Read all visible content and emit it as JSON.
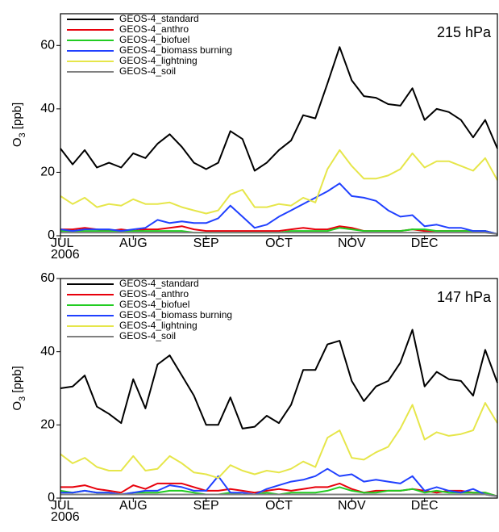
{
  "chart_data": [
    {
      "type": "line",
      "annotation": "215 hPa",
      "ylabel": [
        "O",
        "3",
        " [ppb]"
      ],
      "year_label": "2006",
      "categories": [
        "JUL",
        null,
        null,
        null,
        null,
        null,
        "AUG",
        null,
        null,
        null,
        null,
        null,
        "SEP",
        null,
        null,
        null,
        null,
        null,
        "OCT",
        null,
        null,
        null,
        null,
        null,
        "NOV",
        null,
        null,
        null,
        null,
        null,
        "DEC",
        null,
        null,
        null,
        null,
        null,
        null
      ],
      "ylim": [
        0,
        70
      ],
      "yticks": [
        0,
        20,
        40,
        60
      ],
      "legend": "upper left",
      "series": [
        {
          "name": "GEOS-4_standard",
          "color": "#000000",
          "values": [
            27.5,
            22.5,
            27,
            21.5,
            23,
            21.5,
            26,
            24.5,
            29,
            32,
            28,
            23,
            21,
            23,
            33,
            30.5,
            20.5,
            23,
            27,
            30,
            38,
            37,
            48,
            59.5,
            49,
            44,
            43.5,
            41.5,
            41,
            46.5,
            36.5,
            40,
            39,
            36.5,
            31,
            36.5,
            27.5
          ]
        },
        {
          "name": "GEOS-4_anthro",
          "color": "#e8000b",
          "values": [
            2,
            2,
            2.5,
            2,
            1.5,
            2,
            1.5,
            2,
            2,
            2.5,
            3,
            2,
            1.5,
            1.5,
            1.5,
            1.5,
            1.5,
            1.5,
            1.5,
            2,
            2.5,
            2,
            2,
            3,
            2.5,
            1.5,
            1.5,
            1.5,
            1.5,
            2,
            1.5,
            1.5,
            1.5,
            1.5,
            1.5,
            1.5,
            0.5
          ]
        },
        {
          "name": "GEOS-4_biofuel",
          "color": "#22cc22",
          "values": [
            1.5,
            1.5,
            1.5,
            1.5,
            1.5,
            1.5,
            1.5,
            1.5,
            1.5,
            1.5,
            1.5,
            1,
            1,
            1,
            1,
            1,
            1,
            1,
            1,
            1.5,
            1.5,
            1.5,
            1.5,
            2.5,
            2,
            1.5,
            1.5,
            1.5,
            1.5,
            2,
            2,
            1.5,
            1.5,
            1.5,
            1.5,
            1.5,
            0.5
          ]
        },
        {
          "name": "GEOS-4_biomass burning",
          "color": "#2040ff",
          "values": [
            2,
            1.5,
            2,
            2,
            2,
            1.5,
            2,
            2.5,
            5,
            4,
            4.5,
            4,
            4,
            5.5,
            9.5,
            6,
            2.5,
            3.5,
            6,
            8,
            10,
            12,
            14,
            16.5,
            12.5,
            12,
            11,
            8,
            6,
            6.5,
            3,
            3.5,
            2.5,
            2.5,
            1.5,
            1.5,
            0.5
          ]
        },
        {
          "name": "GEOS-4_lightning",
          "color": "#e6e64a",
          "values": [
            12.5,
            10,
            12,
            9,
            10,
            9.5,
            11.5,
            10,
            10,
            10.5,
            9,
            8,
            7,
            8,
            13,
            14.5,
            9,
            9,
            10,
            9.5,
            12,
            10.5,
            21,
            27,
            22,
            18,
            18,
            19,
            21,
            26,
            21.5,
            23.5,
            23.5,
            22,
            20.5,
            24.5,
            17.5
          ]
        },
        {
          "name": "GEOS-4_soil",
          "color": "#808080",
          "values": [
            1,
            1,
            1,
            1,
            1,
            1,
            1,
            1,
            1,
            1,
            1,
            1,
            1,
            1,
            1,
            1,
            1,
            1,
            1,
            1,
            1,
            1,
            1,
            1,
            1,
            1,
            1,
            1,
            1,
            1,
            1,
            1,
            1,
            1,
            1,
            1,
            0.5
          ]
        }
      ]
    },
    {
      "type": "line",
      "annotation": "147 hPa",
      "ylabel": [
        "O",
        "3",
        " [ppb]"
      ],
      "year_label": "2006",
      "categories": [
        "JUL",
        null,
        null,
        null,
        null,
        null,
        "AUG",
        null,
        null,
        null,
        null,
        null,
        "SEP",
        null,
        null,
        null,
        null,
        null,
        "OCT",
        null,
        null,
        null,
        null,
        null,
        "NOV",
        null,
        null,
        null,
        null,
        null,
        "DEC",
        null,
        null,
        null,
        null,
        null,
        null
      ],
      "ylim": [
        0,
        60
      ],
      "yticks": [
        0,
        20,
        40,
        60
      ],
      "legend": "upper left",
      "series": [
        {
          "name": "GEOS-4_standard",
          "color": "#000000",
          "values": [
            30,
            30.5,
            33.5,
            25,
            23,
            20.5,
            32.5,
            24.5,
            36.5,
            39,
            33.5,
            28,
            20,
            20,
            27.5,
            19,
            19.5,
            22.5,
            20.5,
            25.5,
            35,
            35,
            42,
            43,
            32,
            26.5,
            30.5,
            32,
            37,
            46,
            30.5,
            34.5,
            32.5,
            32,
            28,
            40.5,
            31.5
          ]
        },
        {
          "name": "GEOS-4_anthro",
          "color": "#e8000b",
          "values": [
            3,
            3,
            3.5,
            2.5,
            2,
            1.5,
            3.5,
            2.5,
            4,
            4,
            4,
            3,
            2,
            2,
            2.5,
            2,
            1.5,
            2,
            2.5,
            2,
            2.5,
            3,
            3,
            4,
            2.5,
            1.5,
            2,
            2,
            2,
            2.5,
            2,
            1.5,
            2,
            2,
            1.5,
            1.5,
            0.5
          ]
        },
        {
          "name": "GEOS-4_biofuel",
          "color": "#22cc22",
          "values": [
            2,
            1.5,
            2,
            1.5,
            1.5,
            1,
            1.5,
            1.5,
            1.5,
            2,
            2,
            1.5,
            1,
            1,
            1.5,
            1,
            1,
            1.5,
            1,
            1.5,
            1.5,
            1.5,
            2,
            3,
            2,
            1.5,
            1.5,
            2,
            2,
            2.5,
            1.5,
            2,
            1.5,
            1.5,
            1.5,
            1.5,
            0.5
          ]
        },
        {
          "name": "GEOS-4_biomass burning",
          "color": "#2040ff",
          "values": [
            1.5,
            1.5,
            2,
            1.5,
            1.5,
            1,
            1.5,
            2,
            2,
            3.5,
            3,
            2,
            2,
            6,
            1.5,
            1.5,
            1,
            2.5,
            3.5,
            4.5,
            5,
            6,
            8,
            6,
            6.5,
            4.5,
            5,
            4.5,
            4,
            6,
            2,
            3,
            2,
            1.5,
            2.5,
            1,
            0.5
          ]
        },
        {
          "name": "GEOS-4_lightning",
          "color": "#e6e64a",
          "values": [
            12,
            9.5,
            11,
            8.5,
            7.5,
            7.5,
            11.5,
            7.5,
            8,
            11.5,
            9.5,
            7,
            6.5,
            5.5,
            9,
            7.5,
            6.5,
            7.5,
            7,
            8,
            10,
            8.5,
            16.5,
            18.5,
            11,
            10.5,
            12.5,
            14,
            19,
            25.5,
            16,
            18,
            17,
            17.5,
            18.5,
            26,
            20.5
          ]
        },
        {
          "name": "GEOS-4_soil",
          "color": "#808080",
          "values": [
            1,
            1,
            1,
            1,
            1,
            1,
            1,
            1,
            1,
            1,
            1,
            1,
            1,
            1,
            1,
            1,
            1,
            1,
            1,
            1,
            1,
            1,
            1,
            1,
            1,
            1,
            1,
            1,
            1,
            1,
            1,
            1,
            1,
            1,
            1,
            1,
            0.5
          ]
        }
      ]
    }
  ]
}
